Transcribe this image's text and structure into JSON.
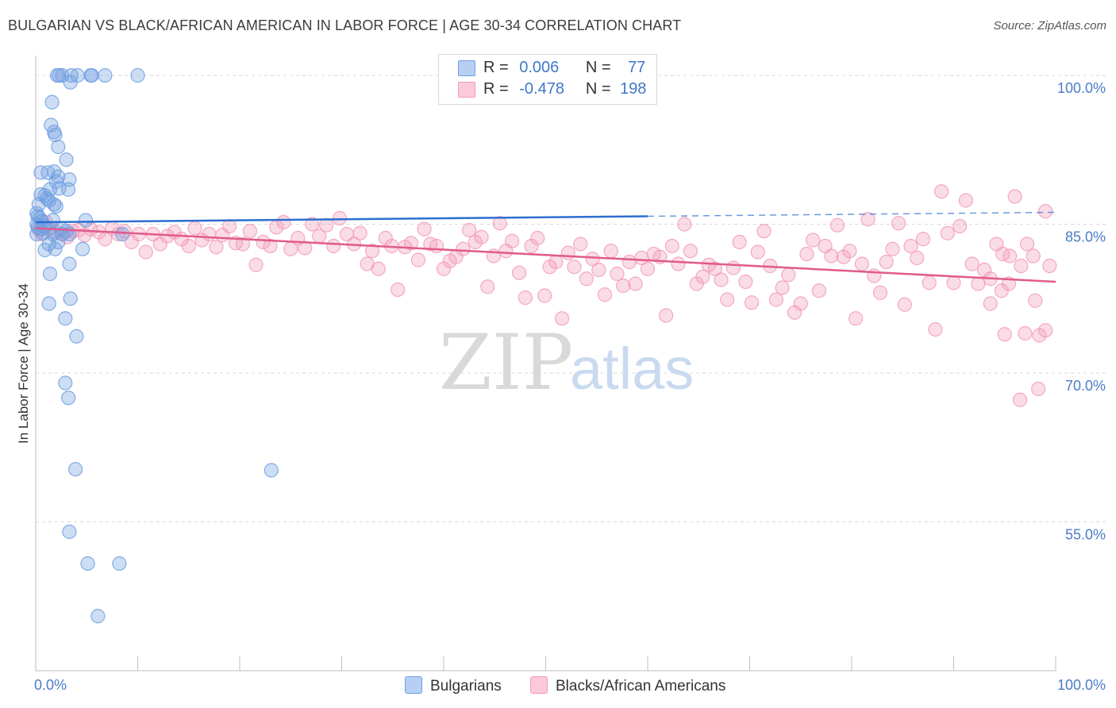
{
  "title": "BULGARIAN VS BLACK/AFRICAN AMERICAN IN LABOR FORCE | AGE 30-34 CORRELATION CHART",
  "source": "Source: ZipAtlas.com",
  "legend": {
    "row1": {
      "r_label": "R =",
      "r_value": "0.006",
      "n_label": "N =",
      "n_value": "77"
    },
    "row2": {
      "r_label": "R =",
      "r_value": "-0.478",
      "n_label": "N =",
      "n_value": "198"
    }
  },
  "bottom_legend": {
    "series1": "Bulgarians",
    "series2": "Blacks/African Americans"
  },
  "watermark": {
    "zip": "ZIP",
    "atlas": "atlas"
  },
  "colors": {
    "blue": "#6f9fe0",
    "blue_line": "#2c6fcf",
    "pink": "#f29ab8",
    "pink_line": "#e05a8d",
    "grid": "#d8d8d8",
    "tick_text": "#4a7cc7"
  },
  "chart_data": {
    "type": "scatter",
    "ylabel": "In Labor Force | Age 30-34",
    "xlabel": "",
    "xlim": [
      0,
      100
    ],
    "ylim": [
      40,
      102
    ],
    "x_tick_labels": [
      "0.0%",
      "100.0%"
    ],
    "y_ticks": [
      55,
      70,
      85,
      100
    ],
    "y_tick_labels": [
      "55.0%",
      "70.0%",
      "85.0%",
      "100.0%"
    ],
    "grid": "dashed horizontal",
    "legend_position": "top-center",
    "series": [
      {
        "name": "Bulgarians",
        "color": "#6f9fe0",
        "points": [
          [
            2.1,
            100
          ],
          [
            2.3,
            100
          ],
          [
            2.6,
            100
          ],
          [
            3.5,
            100
          ],
          [
            4.1,
            100
          ],
          [
            5.4,
            100
          ],
          [
            5.5,
            100
          ],
          [
            6.8,
            100
          ],
          [
            10.0,
            100
          ],
          [
            3.4,
            99.3
          ],
          [
            1.6,
            97.3
          ],
          [
            1.5,
            95
          ],
          [
            1.8,
            94.3
          ],
          [
            1.9,
            94
          ],
          [
            2.2,
            92.8
          ],
          [
            3.0,
            91.5
          ],
          [
            0.5,
            90.2
          ],
          [
            1.2,
            90.2
          ],
          [
            1.8,
            90.3
          ],
          [
            2.2,
            89.8
          ],
          [
            3.3,
            89.5
          ],
          [
            2.0,
            89.3
          ],
          [
            1.4,
            88.5
          ],
          [
            2.3,
            88.6
          ],
          [
            3.2,
            88.5
          ],
          [
            0.5,
            88.0
          ],
          [
            0.9,
            87.9
          ],
          [
            1.1,
            87.6
          ],
          [
            1.3,
            87.4
          ],
          [
            0.3,
            87.0
          ],
          [
            1.8,
            87.0
          ],
          [
            2.0,
            86.8
          ],
          [
            0.1,
            86.1
          ],
          [
            0.2,
            85.8
          ],
          [
            0.4,
            85.6
          ],
          [
            0.6,
            85.3
          ],
          [
            1.7,
            85.4
          ],
          [
            4.9,
            85.4
          ],
          [
            0.1,
            85.0
          ],
          [
            0.2,
            84.7
          ],
          [
            0.9,
            84.8
          ],
          [
            1.3,
            84.5
          ],
          [
            2.5,
            84.6
          ],
          [
            3.0,
            84.3
          ],
          [
            0.7,
            84.1
          ],
          [
            0.1,
            84.0
          ],
          [
            2.6,
            84.0
          ],
          [
            3.3,
            84.0
          ],
          [
            8.5,
            84.0
          ],
          [
            0.5,
            84.5
          ],
          [
            1.7,
            84.0
          ],
          [
            2.2,
            83.2
          ],
          [
            1.3,
            83.0
          ],
          [
            1.9,
            82.5
          ],
          [
            0.9,
            82.4
          ],
          [
            4.6,
            82.5
          ],
          [
            3.3,
            81.0
          ],
          [
            1.4,
            80.0
          ],
          [
            3.4,
            77.5
          ],
          [
            1.3,
            77.0
          ],
          [
            2.9,
            75.5
          ],
          [
            4.0,
            73.7
          ],
          [
            2.9,
            69.0
          ],
          [
            3.2,
            67.5
          ],
          [
            3.9,
            60.3
          ],
          [
            23.1,
            60.2
          ],
          [
            3.3,
            54.0
          ],
          [
            5.1,
            50.8
          ],
          [
            8.2,
            50.8
          ],
          [
            6.1,
            45.5
          ]
        ]
      },
      {
        "name": "Blacks/African Americans",
        "color": "#f29ab8",
        "points": [
          [
            0.3,
            84.5
          ],
          [
            0.6,
            84.0
          ],
          [
            1.0,
            85.2
          ],
          [
            1.5,
            84.6
          ],
          [
            2.0,
            84.2
          ],
          [
            2.6,
            84.0
          ],
          [
            3.1,
            83.7
          ],
          [
            3.6,
            84.3
          ],
          [
            4.2,
            84.4
          ],
          [
            4.8,
            83.9
          ],
          [
            5.4,
            84.5
          ],
          [
            6.2,
            84.2
          ],
          [
            6.8,
            83.5
          ],
          [
            7.5,
            84.6
          ],
          [
            8.1,
            84.0
          ],
          [
            8.7,
            84.3
          ],
          [
            9.4,
            83.2
          ],
          [
            10.1,
            84.0
          ],
          [
            10.8,
            82.2
          ],
          [
            11.5,
            84.0
          ],
          [
            12.2,
            83.0
          ],
          [
            12.9,
            83.8
          ],
          [
            13.6,
            84.2
          ],
          [
            14.3,
            83.5
          ],
          [
            15.0,
            82.8
          ],
          [
            15.6,
            84.6
          ],
          [
            16.3,
            83.4
          ],
          [
            17.0,
            84.0
          ],
          [
            17.7,
            82.7
          ],
          [
            18.3,
            83.9
          ],
          [
            19.0,
            84.8
          ],
          [
            19.6,
            83.1
          ],
          [
            20.3,
            83.0
          ],
          [
            21.0,
            84.3
          ],
          [
            21.6,
            80.9
          ],
          [
            22.3,
            83.2
          ],
          [
            23.0,
            82.8
          ],
          [
            23.6,
            84.7
          ],
          [
            24.3,
            85.2
          ],
          [
            25.0,
            82.5
          ],
          [
            25.7,
            83.6
          ],
          [
            26.4,
            82.6
          ],
          [
            27.1,
            85.0
          ],
          [
            27.8,
            83.8
          ],
          [
            28.5,
            84.9
          ],
          [
            29.2,
            82.8
          ],
          [
            29.8,
            85.6
          ],
          [
            30.5,
            84.0
          ],
          [
            31.2,
            83.0
          ],
          [
            31.8,
            84.1
          ],
          [
            32.5,
            81.0
          ],
          [
            33.0,
            82.3
          ],
          [
            33.6,
            80.5
          ],
          [
            34.3,
            83.6
          ],
          [
            34.9,
            82.8
          ],
          [
            35.5,
            78.4
          ],
          [
            36.2,
            82.7
          ],
          [
            36.8,
            83.1
          ],
          [
            37.5,
            81.4
          ],
          [
            38.1,
            84.5
          ],
          [
            38.7,
            83.0
          ],
          [
            39.3,
            82.8
          ],
          [
            40.0,
            80.5
          ],
          [
            40.6,
            81.3
          ],
          [
            41.2,
            81.7
          ],
          [
            41.9,
            82.5
          ],
          [
            42.5,
            84.4
          ],
          [
            43.1,
            83.2
          ],
          [
            43.7,
            83.7
          ],
          [
            44.3,
            78.7
          ],
          [
            44.9,
            81.8
          ],
          [
            45.5,
            85.1
          ],
          [
            46.1,
            82.3
          ],
          [
            46.7,
            83.3
          ],
          [
            47.4,
            80.1
          ],
          [
            48.0,
            77.6
          ],
          [
            48.6,
            82.8
          ],
          [
            49.2,
            83.6
          ],
          [
            49.9,
            77.8
          ],
          [
            50.4,
            80.7
          ],
          [
            51.0,
            81.2
          ],
          [
            51.6,
            75.5
          ],
          [
            52.2,
            82.1
          ],
          [
            52.8,
            80.7
          ],
          [
            53.4,
            83.0
          ],
          [
            54.0,
            79.5
          ],
          [
            54.6,
            81.5
          ],
          [
            55.2,
            80.4
          ],
          [
            55.8,
            77.9
          ],
          [
            56.4,
            82.3
          ],
          [
            57.0,
            80.0
          ],
          [
            57.6,
            78.8
          ],
          [
            58.2,
            81.2
          ],
          [
            58.8,
            79.0
          ],
          [
            59.4,
            81.6
          ],
          [
            60.0,
            80.5
          ],
          [
            60.6,
            82.0
          ],
          [
            61.2,
            81.7
          ],
          [
            61.8,
            75.8
          ],
          [
            62.4,
            82.8
          ],
          [
            63.0,
            81.0
          ],
          [
            63.6,
            85.0
          ],
          [
            64.2,
            82.3
          ],
          [
            64.8,
            79.0
          ],
          [
            65.4,
            79.7
          ],
          [
            66.0,
            80.9
          ],
          [
            66.6,
            80.5
          ],
          [
            67.2,
            79.4
          ],
          [
            67.8,
            77.4
          ],
          [
            68.4,
            80.6
          ],
          [
            69.0,
            83.2
          ],
          [
            69.6,
            79.2
          ],
          [
            70.2,
            77.1
          ],
          [
            70.8,
            82.2
          ],
          [
            71.4,
            84.3
          ],
          [
            72.0,
            80.8
          ],
          [
            72.6,
            77.4
          ],
          [
            73.2,
            78.6
          ],
          [
            73.8,
            79.9
          ],
          [
            74.4,
            76.1
          ],
          [
            75.0,
            77.0
          ],
          [
            75.6,
            82.0
          ],
          [
            76.2,
            83.4
          ],
          [
            76.8,
            78.3
          ],
          [
            77.4,
            82.8
          ],
          [
            78.0,
            81.8
          ],
          [
            78.6,
            84.9
          ],
          [
            79.2,
            81.7
          ],
          [
            79.8,
            82.3
          ],
          [
            80.4,
            75.5
          ],
          [
            81.0,
            81.0
          ],
          [
            81.6,
            85.5
          ],
          [
            82.2,
            79.8
          ],
          [
            82.8,
            78.1
          ],
          [
            83.4,
            81.2
          ],
          [
            84.0,
            82.5
          ],
          [
            84.6,
            85.1
          ],
          [
            85.2,
            76.9
          ],
          [
            85.8,
            82.8
          ],
          [
            86.4,
            81.6
          ],
          [
            87.0,
            83.5
          ],
          [
            87.6,
            79.1
          ],
          [
            88.2,
            74.4
          ],
          [
            88.8,
            88.3
          ],
          [
            89.4,
            84.1
          ],
          [
            90.0,
            79.1
          ],
          [
            90.6,
            84.8
          ],
          [
            91.2,
            87.4
          ],
          [
            91.8,
            81.0
          ],
          [
            92.4,
            79.0
          ],
          [
            93.0,
            80.4
          ],
          [
            93.6,
            77.0
          ],
          [
            94.2,
            83.0
          ],
          [
            94.8,
            82.0
          ],
          [
            95.4,
            79.0
          ],
          [
            96.0,
            87.8
          ],
          [
            96.6,
            80.8
          ],
          [
            97.2,
            83.0
          ],
          [
            97.8,
            81.8
          ],
          [
            98.4,
            73.8
          ],
          [
            99.0,
            86.3
          ],
          [
            99.4,
            80.8
          ],
          [
            95.0,
            73.9
          ],
          [
            96.5,
            67.3
          ],
          [
            98.3,
            68.4
          ],
          [
            99.0,
            74.3
          ],
          [
            97.0,
            74.0
          ],
          [
            95.5,
            81.8
          ],
          [
            98.0,
            77.3
          ],
          [
            93.6,
            79.5
          ],
          [
            94.7,
            78.3
          ]
        ]
      }
    ],
    "trend_lines": [
      {
        "series": "Bulgarians",
        "x": [
          0,
          60
        ],
        "y": [
          85.2,
          85.8
        ],
        "dashed_extension_to": 100,
        "dashed_end_y": 86.2
      },
      {
        "series": "Blacks/African Americans",
        "x": [
          0,
          100
        ],
        "y": [
          84.6,
          79.2
        ]
      }
    ]
  }
}
